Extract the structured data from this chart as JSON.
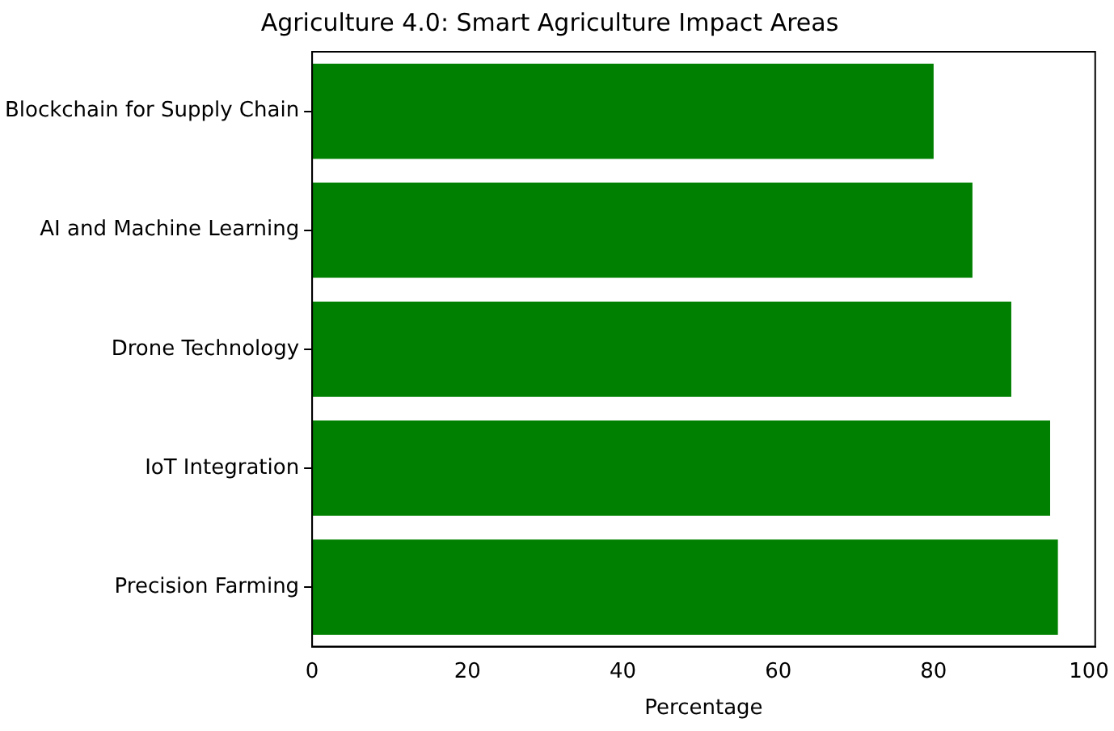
{
  "chart_data": {
    "type": "bar",
    "orientation": "horizontal",
    "title": "Agriculture 4.0: Smart Agriculture Impact Areas",
    "xlabel": "Percentage",
    "categories": [
      "Blockchain for Supply Chain",
      "AI and Machine Learning",
      "Drone Technology",
      "IoT Integration",
      "Precision Farming"
    ],
    "values": [
      80,
      85,
      90,
      95,
      96
    ],
    "color": "#008000",
    "xlim": [
      0,
      100.8
    ],
    "xticks": [
      0,
      20,
      40,
      60,
      80,
      100
    ],
    "grid": false,
    "legend": false
  }
}
